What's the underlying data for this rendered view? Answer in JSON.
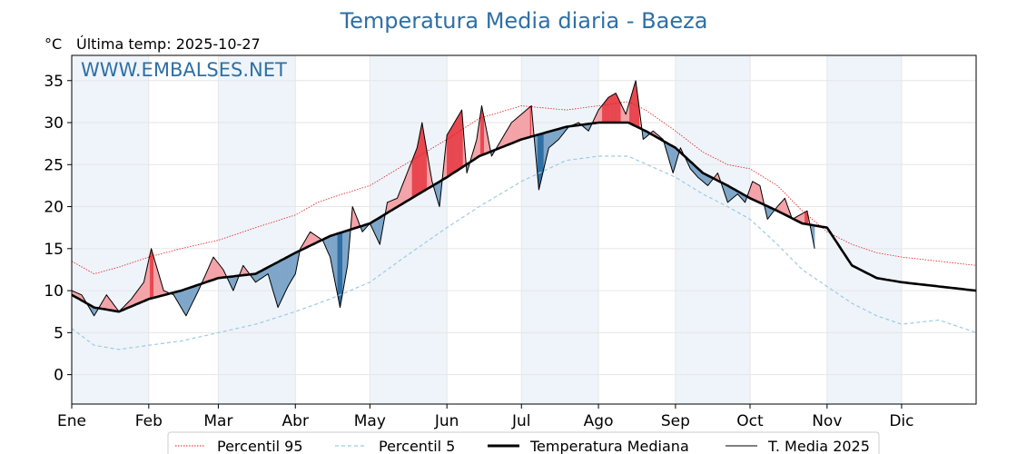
{
  "chart_data": {
    "type": "line",
    "title": "Temperatura Media diaria - Baeza",
    "unit_label": "°C",
    "last_temp_label": "Última temp: 2025-10-27",
    "watermark": "WWW.EMBALSES.NET",
    "ylim": [
      -3.5,
      38
    ],
    "yticks": [
      0,
      5,
      10,
      15,
      20,
      25,
      30,
      35
    ],
    "month_labels": [
      "Ene",
      "Feb",
      "Mar",
      "Abr",
      "May",
      "Jun",
      "Jul",
      "Ago",
      "Sep",
      "Oct",
      "Nov",
      "Dic"
    ],
    "month_start_day": [
      1,
      32,
      60,
      91,
      121,
      152,
      182,
      213,
      244,
      274,
      305,
      335
    ],
    "days_in_year": 365,
    "last_day_2025": 300,
    "grid": true,
    "legend_position": "bottom",
    "colors": {
      "p95": "#e31a1c",
      "p5": "#9ecae1",
      "median": "#000000",
      "mean2025": "#000000",
      "above_fill": "#f4a3a8",
      "above_fill_strong": "#e8474f",
      "below_fill": "#7ea6c9",
      "below_fill_strong": "#2f6fa4",
      "title": "#2f6fa4",
      "month_band": "#eef4fa"
    },
    "series": [
      {
        "key": "p95",
        "name": "Percentil 95",
        "style": "dotted",
        "anchors": [
          [
            1,
            13.5
          ],
          [
            10,
            12
          ],
          [
            20,
            12.8
          ],
          [
            32,
            14
          ],
          [
            45,
            15
          ],
          [
            60,
            16
          ],
          [
            75,
            17.5
          ],
          [
            91,
            19
          ],
          [
            100,
            20.5
          ],
          [
            110,
            21.5
          ],
          [
            121,
            22.5
          ],
          [
            135,
            25
          ],
          [
            152,
            28
          ],
          [
            165,
            30.5
          ],
          [
            182,
            32
          ],
          [
            200,
            31.5
          ],
          [
            213,
            32
          ],
          [
            225,
            32.5
          ],
          [
            232,
            31.5
          ],
          [
            244,
            29
          ],
          [
            255,
            26.5
          ],
          [
            265,
            25
          ],
          [
            274,
            24.5
          ],
          [
            285,
            22.5
          ],
          [
            295,
            19.5
          ],
          [
            305,
            17
          ],
          [
            315,
            15.5
          ],
          [
            325,
            14.5
          ],
          [
            335,
            14
          ],
          [
            350,
            13.5
          ],
          [
            365,
            13
          ]
        ]
      },
      {
        "key": "p5",
        "name": "Percentil 5",
        "style": "dashed",
        "anchors": [
          [
            1,
            5.5
          ],
          [
            10,
            3.5
          ],
          [
            20,
            3
          ],
          [
            32,
            3.5
          ],
          [
            45,
            4
          ],
          [
            60,
            5
          ],
          [
            75,
            6
          ],
          [
            91,
            7.5
          ],
          [
            105,
            9
          ],
          [
            121,
            11
          ],
          [
            135,
            14
          ],
          [
            152,
            17.5
          ],
          [
            165,
            20
          ],
          [
            182,
            23
          ],
          [
            200,
            25.5
          ],
          [
            213,
            26
          ],
          [
            225,
            26
          ],
          [
            244,
            23.5
          ],
          [
            255,
            21.5
          ],
          [
            265,
            20
          ],
          [
            274,
            18.5
          ],
          [
            285,
            15.5
          ],
          [
            295,
            12.5
          ],
          [
            305,
            10.5
          ],
          [
            315,
            8.5
          ],
          [
            325,
            7
          ],
          [
            335,
            6
          ],
          [
            350,
            6.5
          ],
          [
            365,
            5
          ]
        ]
      },
      {
        "key": "median",
        "name": "Temperatura Mediana",
        "style": "thick",
        "anchors": [
          [
            1,
            9.5
          ],
          [
            10,
            8
          ],
          [
            20,
            7.5
          ],
          [
            32,
            9
          ],
          [
            45,
            10
          ],
          [
            60,
            11.5
          ],
          [
            75,
            12
          ],
          [
            91,
            14.5
          ],
          [
            105,
            16.5
          ],
          [
            121,
            18
          ],
          [
            135,
            20.5
          ],
          [
            152,
            23.5
          ],
          [
            165,
            26
          ],
          [
            182,
            28
          ],
          [
            200,
            29.5
          ],
          [
            213,
            30
          ],
          [
            225,
            30
          ],
          [
            232,
            29
          ],
          [
            244,
            27
          ],
          [
            255,
            24
          ],
          [
            265,
            22.5
          ],
          [
            274,
            21
          ],
          [
            285,
            19.5
          ],
          [
            295,
            18
          ],
          [
            305,
            17.5
          ],
          [
            315,
            13
          ],
          [
            325,
            11.5
          ],
          [
            335,
            11
          ],
          [
            350,
            10.5
          ],
          [
            365,
            10
          ]
        ]
      },
      {
        "key": "mean2025",
        "name": "T. Media 2025",
        "style": "thin",
        "anchors": [
          [
            1,
            10
          ],
          [
            5,
            9.5
          ],
          [
            10,
            7
          ],
          [
            15,
            9.5
          ],
          [
            20,
            7.5
          ],
          [
            25,
            9
          ],
          [
            30,
            11
          ],
          [
            33,
            15
          ],
          [
            38,
            10
          ],
          [
            42,
            9.5
          ],
          [
            47,
            7
          ],
          [
            52,
            10
          ],
          [
            58,
            14
          ],
          [
            62,
            12.5
          ],
          [
            66,
            10
          ],
          [
            70,
            13
          ],
          [
            75,
            11
          ],
          [
            80,
            12
          ],
          [
            84,
            8
          ],
          [
            88,
            10.5
          ],
          [
            91,
            12
          ],
          [
            93,
            15
          ],
          [
            97,
            17
          ],
          [
            102,
            16
          ],
          [
            105,
            14
          ],
          [
            109,
            8
          ],
          [
            112,
            13
          ],
          [
            114,
            20
          ],
          [
            118,
            17
          ],
          [
            121,
            18
          ],
          [
            125,
            15.5
          ],
          [
            128,
            20.5
          ],
          [
            132,
            21
          ],
          [
            136,
            24
          ],
          [
            140,
            27
          ],
          [
            142,
            30
          ],
          [
            146,
            23
          ],
          [
            149,
            20
          ],
          [
            152,
            28.5
          ],
          [
            155,
            30
          ],
          [
            158,
            31.5
          ],
          [
            160,
            24
          ],
          [
            164,
            28
          ],
          [
            166,
            32
          ],
          [
            170,
            26
          ],
          [
            174,
            28
          ],
          [
            178,
            30
          ],
          [
            182,
            31
          ],
          [
            186,
            32
          ],
          [
            189,
            22
          ],
          [
            193,
            27
          ],
          [
            197,
            28
          ],
          [
            201,
            29.5
          ],
          [
            205,
            30
          ],
          [
            209,
            29
          ],
          [
            213,
            31.5
          ],
          [
            217,
            33
          ],
          [
            220,
            33.5
          ],
          [
            224,
            31
          ],
          [
            228,
            35
          ],
          [
            231,
            28
          ],
          [
            235,
            29
          ],
          [
            239,
            28
          ],
          [
            243,
            24
          ],
          [
            246,
            27
          ],
          [
            250,
            24.5
          ],
          [
            253,
            23.5
          ],
          [
            257,
            22.5
          ],
          [
            261,
            24
          ],
          [
            265,
            20.5
          ],
          [
            269,
            21.5
          ],
          [
            272,
            20.5
          ],
          [
            275,
            23
          ],
          [
            278,
            22.5
          ],
          [
            281,
            18.5
          ],
          [
            285,
            20
          ],
          [
            288,
            21
          ],
          [
            291,
            18.5
          ],
          [
            294,
            19
          ],
          [
            297,
            19.5
          ],
          [
            300,
            15
          ]
        ]
      }
    ]
  }
}
